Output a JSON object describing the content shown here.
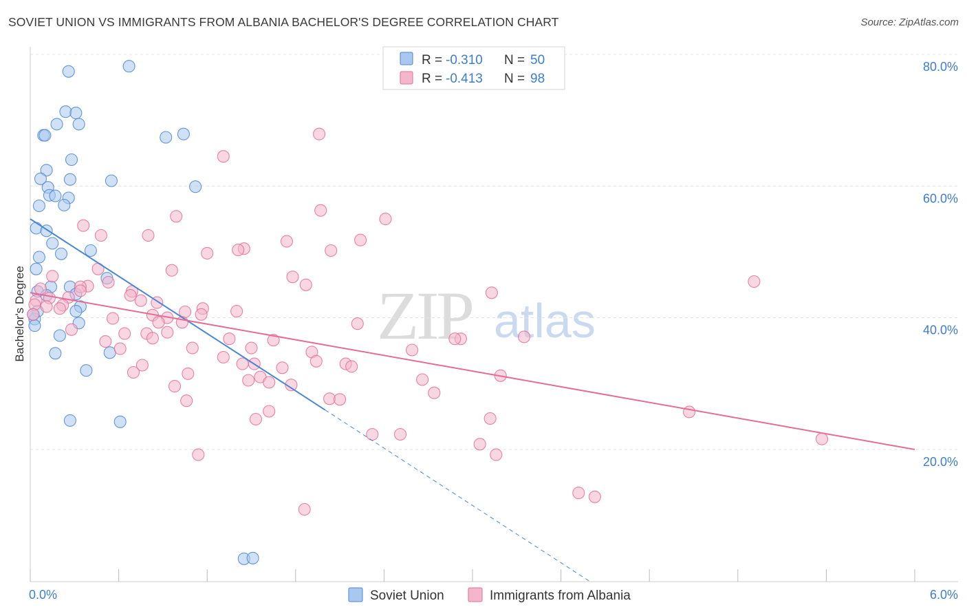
{
  "title": "SOVIET UNION VS IMMIGRANTS FROM ALBANIA BACHELOR'S DEGREE CORRELATION CHART",
  "source": "Source: ZipAtlas.com",
  "watermark": {
    "zip": "ZIP",
    "atlas": "atlas"
  },
  "colors": {
    "blue": "#4a86d4",
    "blue_fill": "#aac8ef",
    "pink": "#e46d97",
    "pink_fill": "#f4b6cb",
    "tick": "#3d7dd1",
    "grid": "#e2e2e2"
  },
  "legend": {
    "rows": [
      {
        "r_label": "R =",
        "r_value": "-0.310",
        "n_label": "N =",
        "n_value": "50"
      },
      {
        "r_label": "R =",
        "r_value": "-0.413",
        "n_label": "N =",
        "n_value": "98"
      }
    ]
  },
  "chart_data": {
    "type": "scatter",
    "xlabel": "",
    "ylabel": "Bachelor's Degree",
    "xlim": [
      0,
      6
    ],
    "ylim": [
      0,
      82
    ],
    "x_tick_labels": [
      "0.0%",
      "6.0%"
    ],
    "y_ticks": [
      20,
      40,
      60,
      80
    ],
    "y_tick_labels": [
      "20.0%",
      "40.0%",
      "60.0%",
      "80.0%"
    ],
    "grid": true,
    "series": [
      {
        "name": "Soviet Union",
        "color": "#4a86d4",
        "trend": {
          "x0": 0.0,
          "y0": 55.0,
          "x1": 2.0,
          "y1": 26.0,
          "dashed_to_x": 3.8
        },
        "points": [
          [
            0.26,
            77.4
          ],
          [
            0.67,
            78.2
          ],
          [
            0.24,
            71.3
          ],
          [
            0.31,
            71.1
          ],
          [
            0.18,
            69.4
          ],
          [
            0.33,
            69.4
          ],
          [
            0.09,
            67.7
          ],
          [
            0.1,
            67.7
          ],
          [
            0.92,
            67.4
          ],
          [
            1.04,
            67.9
          ],
          [
            0.28,
            64.0
          ],
          [
            0.11,
            62.4
          ],
          [
            0.07,
            61.1
          ],
          [
            0.27,
            61.0
          ],
          [
            0.55,
            60.8
          ],
          [
            1.12,
            59.9
          ],
          [
            0.12,
            59.8
          ],
          [
            0.13,
            58.6
          ],
          [
            0.17,
            58.5
          ],
          [
            0.26,
            58.2
          ],
          [
            0.23,
            57.1
          ],
          [
            0.06,
            57.0
          ],
          [
            0.04,
            53.6
          ],
          [
            0.11,
            53.2
          ],
          [
            0.15,
            51.3
          ],
          [
            0.21,
            49.7
          ],
          [
            0.41,
            50.2
          ],
          [
            0.06,
            49.2
          ],
          [
            0.04,
            47.4
          ],
          [
            0.52,
            46.0
          ],
          [
            0.27,
            44.7
          ],
          [
            0.14,
            44.7
          ],
          [
            0.31,
            43.6
          ],
          [
            0.05,
            44.0
          ],
          [
            0.11,
            43.4
          ],
          [
            0.34,
            41.7
          ],
          [
            0.31,
            41.0
          ],
          [
            0.05,
            41.0
          ],
          [
            0.33,
            39.2
          ],
          [
            0.03,
            39.8
          ],
          [
            0.03,
            38.8
          ],
          [
            0.2,
            37.3
          ],
          [
            0.17,
            34.6
          ],
          [
            0.54,
            34.7
          ],
          [
            0.38,
            32.0
          ],
          [
            0.27,
            24.4
          ],
          [
            0.61,
            24.2
          ],
          [
            1.45,
            3.4
          ],
          [
            1.51,
            3.5
          ],
          [
            0.02,
            40.5
          ]
        ]
      },
      {
        "name": "Immigrants from Albania",
        "color": "#e46d97",
        "trend": {
          "x0": 0.0,
          "y0": 43.8,
          "x1": 6.0,
          "y1": 20.0
        },
        "points": [
          [
            1.96,
            67.9
          ],
          [
            1.31,
            64.5
          ],
          [
            1.97,
            56.3
          ],
          [
            2.41,
            55.0
          ],
          [
            0.99,
            55.4
          ],
          [
            0.36,
            54.0
          ],
          [
            0.48,
            52.5
          ],
          [
            0.8,
            52.5
          ],
          [
            1.74,
            51.6
          ],
          [
            2.24,
            51.8
          ],
          [
            1.45,
            50.5
          ],
          [
            2.04,
            50.2
          ],
          [
            1.2,
            49.8
          ],
          [
            1.41,
            50.3
          ],
          [
            0.46,
            47.4
          ],
          [
            0.96,
            47.2
          ],
          [
            1.78,
            46.2
          ],
          [
            0.15,
            46.3
          ],
          [
            4.91,
            45.5
          ],
          [
            0.53,
            45.4
          ],
          [
            1.87,
            45.0
          ],
          [
            0.39,
            44.8
          ],
          [
            0.34,
            44.7
          ],
          [
            0.07,
            44.4
          ],
          [
            0.69,
            44.0
          ],
          [
            0.34,
            44.1
          ],
          [
            3.13,
            43.8
          ],
          [
            0.26,
            43.1
          ],
          [
            0.68,
            43.4
          ],
          [
            0.13,
            43.0
          ],
          [
            0.75,
            42.6
          ],
          [
            0.04,
            42.6
          ],
          [
            0.86,
            42.3
          ],
          [
            0.22,
            41.9
          ],
          [
            0.2,
            41.4
          ],
          [
            0.11,
            41.7
          ],
          [
            1.17,
            41.4
          ],
          [
            1.4,
            41.0
          ],
          [
            1.05,
            40.9
          ],
          [
            1.16,
            40.5
          ],
          [
            0.83,
            40.4
          ],
          [
            0.56,
            39.9
          ],
          [
            0.93,
            40.0
          ],
          [
            1.03,
            39.3
          ],
          [
            0.87,
            39.3
          ],
          [
            2.22,
            39.1
          ],
          [
            0.28,
            38.2
          ],
          [
            0.93,
            37.8
          ],
          [
            0.64,
            37.6
          ],
          [
            0.79,
            37.6
          ],
          [
            1.35,
            36.8
          ],
          [
            0.83,
            36.9
          ],
          [
            1.65,
            36.6
          ],
          [
            0.51,
            36.4
          ],
          [
            2.92,
            36.8
          ],
          [
            3.35,
            37.1
          ],
          [
            0.61,
            35.3
          ],
          [
            1.5,
            35.4
          ],
          [
            1.1,
            35.4
          ],
          [
            2.59,
            35.1
          ],
          [
            1.91,
            34.8
          ],
          [
            1.31,
            34.0
          ],
          [
            1.94,
            33.4
          ],
          [
            1.52,
            33.0
          ],
          [
            1.44,
            33.0
          ],
          [
            0.76,
            32.8
          ],
          [
            2.14,
            33.0
          ],
          [
            1.71,
            32.4
          ],
          [
            2.18,
            32.6
          ],
          [
            1.07,
            31.5
          ],
          [
            0.7,
            31.7
          ],
          [
            1.48,
            30.5
          ],
          [
            1.56,
            31.0
          ],
          [
            1.62,
            30.2
          ],
          [
            3.19,
            31.2
          ],
          [
            2.66,
            30.6
          ],
          [
            1.77,
            29.8
          ],
          [
            0.98,
            29.6
          ],
          [
            2.74,
            28.6
          ],
          [
            2.03,
            27.7
          ],
          [
            2.1,
            27.6
          ],
          [
            1.06,
            27.4
          ],
          [
            1.62,
            25.8
          ],
          [
            1.53,
            24.6
          ],
          [
            4.47,
            25.7
          ],
          [
            3.12,
            24.7
          ],
          [
            2.32,
            22.3
          ],
          [
            2.51,
            22.3
          ],
          [
            5.37,
            21.6
          ],
          [
            3.05,
            20.8
          ],
          [
            3.16,
            19.2
          ],
          [
            1.14,
            19.2
          ],
          [
            3.72,
            13.4
          ],
          [
            3.83,
            12.8
          ],
          [
            1.86,
            10.9
          ],
          [
            0.03,
            42.0
          ],
          [
            0.02,
            40.5
          ],
          [
            2.88,
            36.8
          ]
        ]
      }
    ]
  },
  "bottom_legend": [
    {
      "label": "Soviet Union"
    },
    {
      "label": "Immigrants from Albania"
    }
  ]
}
